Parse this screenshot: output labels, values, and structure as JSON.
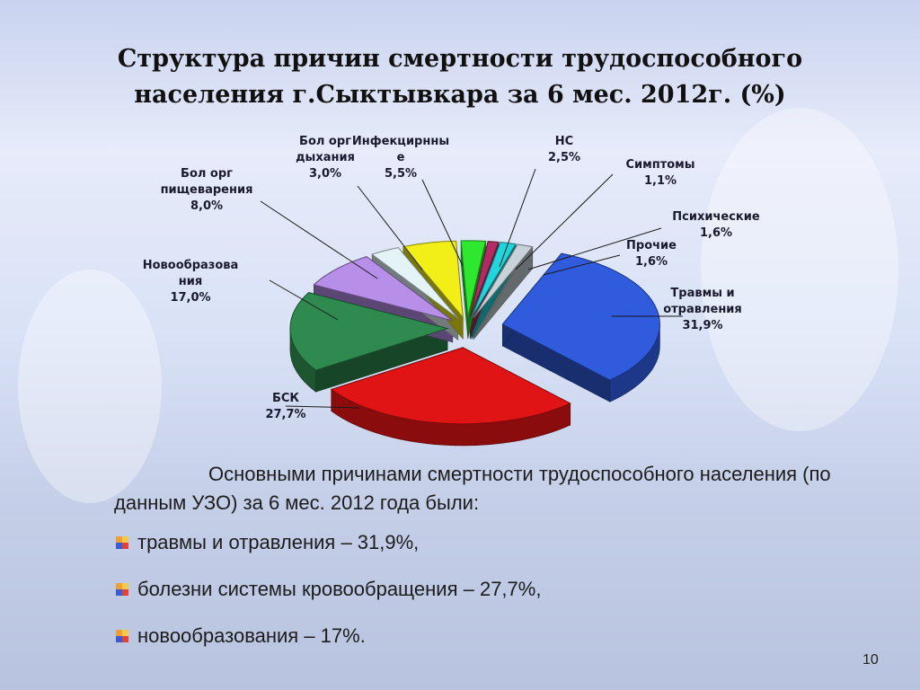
{
  "slide": {
    "title_line1": "Структура причин смертности трудоспособного",
    "title_line2": "населения г.Сыктывкара за 6 мес. 2012г. (%)",
    "page_number": "10"
  },
  "chart_data": {
    "type": "pie",
    "three_d": true,
    "exploded": true,
    "title": "Структура причин смертности трудоспособного населения г.Сыктывкара за 6 мес. 2012г. (%)",
    "slices": [
      {
        "name": "Травмы и отравления",
        "label_lines": [
          "Травмы и",
          "отравления",
          "31,9%"
        ],
        "value": 31.9,
        "color": "#2f5bdc"
      },
      {
        "name": "БСК",
        "label_lines": [
          "БСК",
          "27,7%"
        ],
        "value": 27.7,
        "color": "#e01414"
      },
      {
        "name": "Новообразования",
        "label_lines": [
          "Новообразова",
          "ния",
          "17,0%"
        ],
        "value": 17.0,
        "color": "#2e8a4e"
      },
      {
        "name": "Бол орг пищеварения",
        "label_lines": [
          "Бол орг",
          "пищеварения",
          "8,0%"
        ],
        "value": 8.0,
        "color": "#b78ee8"
      },
      {
        "name": "Бол орг дыхания",
        "label_lines": [
          "Бол орг",
          "дыхания",
          "3,0%"
        ],
        "value": 3.0,
        "color": "#e4f4f6"
      },
      {
        "name": "Инфекцирнные",
        "label_lines": [
          "Инфекцирнны",
          "е",
          "5,5%"
        ],
        "value": 5.5,
        "color": "#f2ee18"
      },
      {
        "name": "НС",
        "label_lines": [
          "НС",
          "2,5%"
        ],
        "value": 2.5,
        "color": "#2ee830"
      },
      {
        "name": "Симптомы",
        "label_lines": [
          "Симптомы",
          "1,1%"
        ],
        "value": 1.1,
        "color": "#b02c62"
      },
      {
        "name": "Психические",
        "label_lines": [
          "Психические",
          "1,6%"
        ],
        "value": 1.6,
        "color": "#22d4dc"
      },
      {
        "name": "Прочие",
        "label_lines": [
          "Прочие",
          "1,6%"
        ],
        "value": 1.6,
        "color": "#c8d2d8"
      }
    ]
  },
  "summary": {
    "intro": "Основными причинами смертности трудоспособного населения (по данным УЗО) за 6 мес. 2012 года были:",
    "bullets": [
      "травмы и отравления – 31,9%,",
      "болезни системы кровообращения – 27,7%,",
      "новообразования – 17%."
    ]
  }
}
